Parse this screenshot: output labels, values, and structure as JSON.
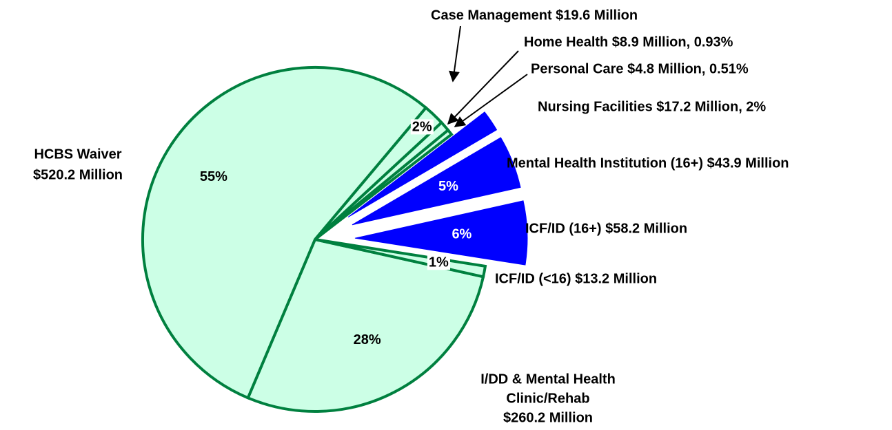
{
  "chart_data": {
    "type": "pie",
    "categories": [
      [
        "I/DD & Mental Health",
        "Clinic/Rehab",
        "$260.2 Million"
      ],
      [
        "ICF/ID (<16) $13.2 Million"
      ],
      [
        "ICF/ID (16+) $58.2 Million"
      ],
      [
        "Mental Health Institution (16+) $43.9 Million"
      ],
      [
        "Nursing Facilities $17.2 Million, 2%"
      ],
      [
        "Personal Care $4.8 Million, 0.51%"
      ],
      [
        "Home Health $8.9 Million, 0.93%"
      ],
      [
        "Case Management $19.6 Million"
      ],
      [
        "HCBS Waiver",
        "$520.2 Million"
      ]
    ],
    "values": [
      28,
      1,
      6,
      5,
      2,
      0.51,
      0.93,
      2,
      55
    ],
    "value_labels": [
      "28%",
      "1%",
      "6%",
      "5%",
      null,
      null,
      null,
      "2%",
      "55%"
    ],
    "colors": [
      "#ccffe6",
      "#ccffe6",
      "#0000ff",
      "#0000ff",
      "#0000ff",
      "#ccffe6",
      "#ccffe6",
      "#ccffe6",
      "#ccffe6"
    ],
    "exploded": [
      false,
      false,
      true,
      true,
      true,
      false,
      false,
      false,
      false
    ]
  }
}
